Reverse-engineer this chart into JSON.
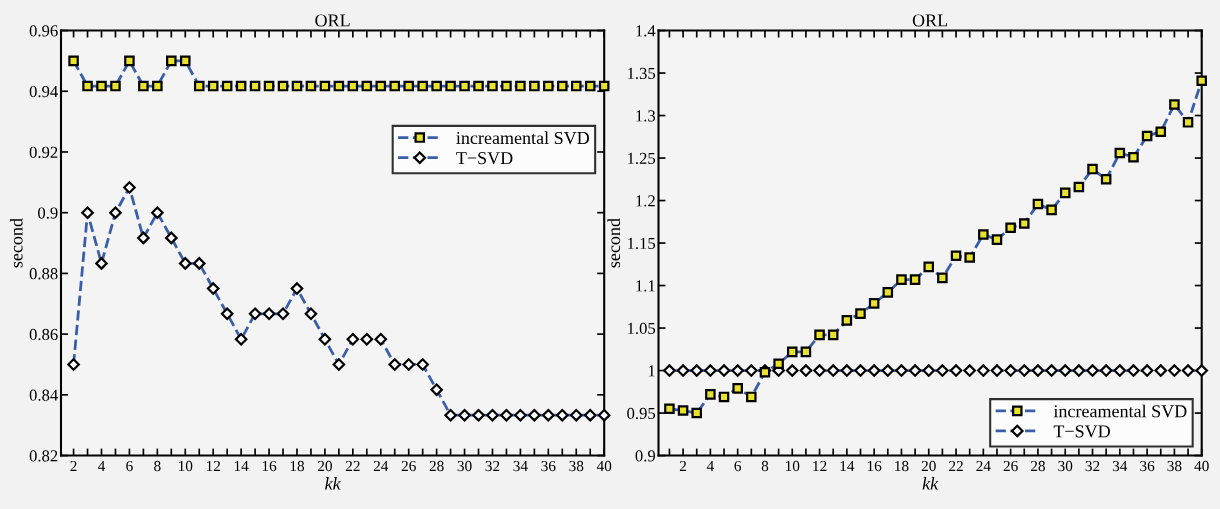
{
  "chart_data": [
    {
      "type": "line",
      "title": "ORL",
      "xlabel": "kk",
      "ylabel": "second",
      "x": [
        2,
        3,
        4,
        5,
        6,
        7,
        8,
        9,
        10,
        11,
        12,
        13,
        14,
        15,
        16,
        17,
        18,
        19,
        20,
        21,
        22,
        23,
        24,
        25,
        26,
        27,
        28,
        29,
        30,
        31,
        32,
        33,
        34,
        35,
        36,
        37,
        38,
        39,
        40
      ],
      "series": [
        {
          "name": "increamental SVD",
          "color": "#3a5fa8",
          "marker": "square",
          "values": [
            0.95,
            0.9417,
            0.9417,
            0.9417,
            0.95,
            0.9417,
            0.9417,
            0.95,
            0.95,
            0.9417,
            0.9417,
            0.9417,
            0.9417,
            0.9417,
            0.9417,
            0.9417,
            0.9417,
            0.9417,
            0.9417,
            0.9417,
            0.9417,
            0.9417,
            0.9417,
            0.9417,
            0.9417,
            0.9417,
            0.9417,
            0.9417,
            0.9417,
            0.9417,
            0.9417,
            0.9417,
            0.9417,
            0.9417,
            0.9417,
            0.9417,
            0.9417,
            0.9417,
            0.9417
          ]
        },
        {
          "name": "T−SVD",
          "color": "#3a5fa8",
          "marker": "diamond",
          "values": [
            0.85,
            0.9,
            0.8833,
            0.9,
            0.9083,
            0.8917,
            0.9,
            0.8917,
            0.8833,
            0.8833,
            0.875,
            0.8667,
            0.8583,
            0.8667,
            0.8667,
            0.8667,
            0.875,
            0.8667,
            0.8583,
            0.85,
            0.8583,
            0.8583,
            0.8583,
            0.85,
            0.85,
            0.85,
            0.8417,
            0.8333,
            0.8333,
            0.8333,
            0.8333,
            0.8333,
            0.8333,
            0.8333,
            0.8333,
            0.8333,
            0.8333,
            0.8333,
            0.8333
          ]
        }
      ],
      "line_style": "dashed",
      "xlim": [
        1.1,
        40
      ],
      "ylim": [
        0.82,
        0.96
      ],
      "xticks": [
        2,
        {
          "value": 3,
          "label": null
        },
        4,
        {
          "value": 5,
          "label": null
        },
        6,
        {
          "value": 7,
          "label": null
        },
        8,
        {
          "value": 9,
          "label": null
        },
        10,
        {
          "value": 11,
          "label": null
        },
        12,
        {
          "value": 13,
          "label": null
        },
        14,
        {
          "value": 15,
          "label": null
        },
        16,
        {
          "value": 17,
          "label": null
        },
        18,
        {
          "value": 19,
          "label": null
        },
        20,
        {
          "value": 21,
          "label": null
        },
        22,
        {
          "value": 23,
          "label": null
        },
        24,
        {
          "value": 25,
          "label": null
        },
        26,
        {
          "value": 27,
          "label": null
        },
        28,
        {
          "value": 29,
          "label": null
        },
        30,
        {
          "value": 31,
          "label": null
        },
        32,
        {
          "value": 33,
          "label": null
        },
        34,
        {
          "value": 35,
          "label": null
        },
        36,
        {
          "value": 37,
          "label": null
        },
        38,
        {
          "value": 39,
          "label": null
        },
        40
      ],
      "yticks": [
        0.82,
        0.84,
        0.86,
        0.88,
        0.9,
        0.92,
        0.94,
        0.96
      ],
      "grid": false,
      "legend": "right"
    },
    {
      "type": "line",
      "title": "ORL",
      "xlabel": "kk",
      "ylabel": "second",
      "x": [
        1,
        2,
        3,
        4,
        5,
        6,
        7,
        8,
        9,
        10,
        11,
        12,
        13,
        14,
        15,
        16,
        17,
        18,
        19,
        20,
        21,
        22,
        23,
        24,
        25,
        26,
        27,
        28,
        29,
        30,
        31,
        32,
        33,
        34,
        35,
        36,
        37,
        38,
        39,
        40
      ],
      "series": [
        {
          "name": "increamental SVD",
          "color": "#3a5fa8",
          "marker": "square",
          "values": [
            0.955,
            0.953,
            0.95,
            0.972,
            0.969,
            0.979,
            0.969,
            0.998,
            1.008,
            1.022,
            1.022,
            1.042,
            1.042,
            1.059,
            1.067,
            1.079,
            1.092,
            1.107,
            1.107,
            1.122,
            1.109,
            1.135,
            1.133,
            1.16,
            1.154,
            1.168,
            1.173,
            1.196,
            1.189,
            1.209,
            1.216,
            1.237,
            1.225,
            1.256,
            1.251,
            1.276,
            1.281,
            1.313,
            1.292,
            1.341
          ]
        },
        {
          "name": "T−SVD",
          "color": "#3a5fa8",
          "marker": "diamond",
          "values": [
            1,
            1,
            1,
            1,
            1,
            1,
            1,
            1,
            1,
            1,
            1,
            1,
            1,
            1,
            1,
            1,
            1,
            1,
            1,
            1,
            1,
            1,
            1,
            1,
            1,
            1,
            1,
            1,
            1,
            1,
            1,
            1,
            1,
            1,
            1,
            1,
            1,
            1,
            1,
            1
          ]
        }
      ],
      "line_style": "dashed",
      "xlim": [
        0.2,
        40
      ],
      "ylim": [
        0.9,
        1.4
      ],
      "xticks": [
        {
          "value": 1,
          "label": null
        },
        2,
        {
          "value": 3,
          "label": null
        },
        4,
        {
          "value": 5,
          "label": null
        },
        6,
        {
          "value": 7,
          "label": null
        },
        8,
        {
          "value": 9,
          "label": null
        },
        10,
        {
          "value": 11,
          "label": null
        },
        12,
        {
          "value": 13,
          "label": null
        },
        14,
        {
          "value": 15,
          "label": null
        },
        16,
        {
          "value": 17,
          "label": null
        },
        18,
        {
          "value": 19,
          "label": null
        },
        20,
        {
          "value": 21,
          "label": null
        },
        22,
        {
          "value": 23,
          "label": null
        },
        24,
        {
          "value": 25,
          "label": null
        },
        26,
        {
          "value": 27,
          "label": null
        },
        28,
        {
          "value": 29,
          "label": null
        },
        30,
        {
          "value": 31,
          "label": null
        },
        32,
        {
          "value": 33,
          "label": null
        },
        34,
        {
          "value": 35,
          "label": null
        },
        36,
        {
          "value": 37,
          "label": null
        },
        38,
        {
          "value": 39,
          "label": null
        },
        40
      ],
      "yticks": [
        0.9,
        0.95,
        1,
        1.05,
        1.1,
        1.15,
        1.2,
        1.25,
        1.3,
        1.35,
        1.4
      ],
      "grid": false,
      "legend": "bottom right"
    }
  ]
}
